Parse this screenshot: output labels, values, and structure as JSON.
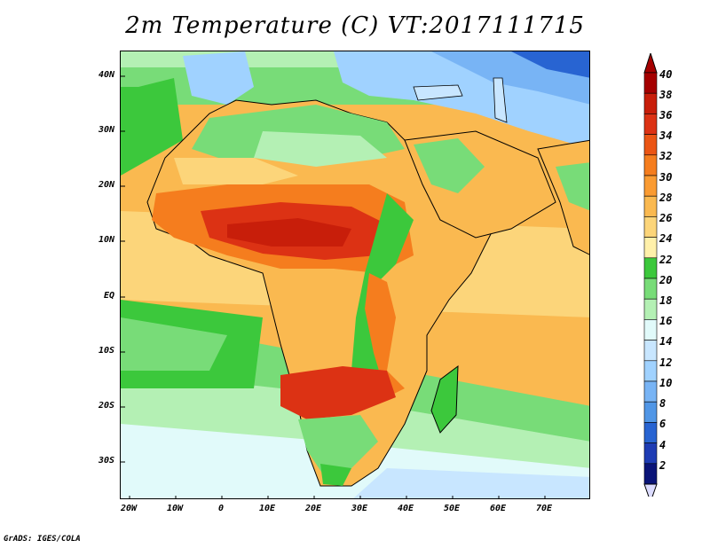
{
  "title": "2m Temperature (C) VT:2017111715",
  "credit": "GrADS: IGES/COLA",
  "y_axis_labels": [
    "40N",
    "30N",
    "20N",
    "10N",
    "EQ",
    "10S",
    "20S",
    "30S"
  ],
  "x_axis_labels": [
    "20W",
    "10W",
    "0",
    "10E",
    "20E",
    "30E",
    "40E",
    "50E",
    "60E",
    "70E"
  ],
  "colorbar": {
    "labels": [
      "40",
      "38",
      "36",
      "34",
      "32",
      "30",
      "28",
      "26",
      "24",
      "22",
      "20",
      "18",
      "16",
      "14",
      "12",
      "10",
      "8",
      "6",
      "4",
      "2"
    ],
    "colors": [
      "#a50000",
      "#c81e0a",
      "#dc3214",
      "#eb5514",
      "#f57d1e",
      "#fa9b32",
      "#fab950",
      "#fcd57a",
      "#fff0aa",
      "#3cc83c",
      "#78dc78",
      "#b4f0b4",
      "#e1fafa",
      "#c8e6ff",
      "#a0d2ff",
      "#78b4f5",
      "#5096e6",
      "#2864d2",
      "#1e3cb4",
      "#0a1478"
    ],
    "low_end_color": "#dcdcff",
    "high_end_color": "#a50000"
  }
}
